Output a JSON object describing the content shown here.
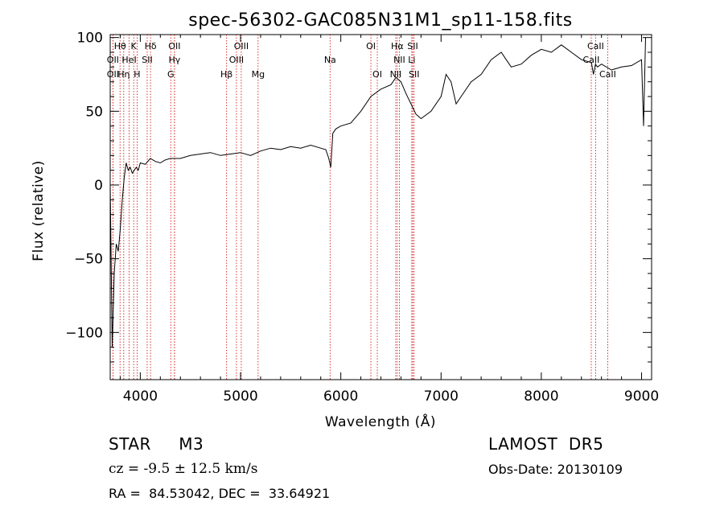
{
  "chart_data": {
    "type": "line",
    "title": "spec-56302-GAC085N31M1_sp11-158.fits",
    "xlabel": "Wavelength (Å)",
    "ylabel": "Flux (relative)",
    "xlim": [
      3700,
      9100
    ],
    "ylim": [
      -132,
      102
    ],
    "x_ticks": [
      4000,
      5000,
      6000,
      7000,
      8000,
      9000
    ],
    "y_ticks": [
      -100,
      -50,
      0,
      50,
      100
    ],
    "grid": false,
    "series": [
      {
        "x": [
          3700,
          3720,
          3740,
          3760,
          3780,
          3800,
          3820,
          3840,
          3860,
          3880,
          3900,
          3920,
          3940,
          3960,
          3980,
          4000,
          4050,
          4100,
          4150,
          4200,
          4250,
          4300,
          4400,
          4500,
          4600,
          4700,
          4800,
          4900,
          5000,
          5100,
          5200,
          5300,
          5400,
          5500,
          5600,
          5700,
          5800,
          5850,
          5880,
          5900,
          5920,
          5950,
          6000,
          6100,
          6200,
          6300,
          6400,
          6500,
          6550,
          6600,
          6650,
          6700,
          6750,
          6800,
          6900,
          7000,
          7050,
          7100,
          7150,
          7200,
          7300,
          7400,
          7500,
          7600,
          7650,
          7700,
          7800,
          7900,
          8000,
          8100,
          8200,
          8300,
          8400,
          8500,
          8520,
          8540,
          8560,
          8600,
          8700,
          8800,
          8900,
          9000,
          9020,
          9040
        ],
        "y": [
          0,
          -110,
          -60,
          -40,
          -45,
          -30,
          -10,
          5,
          15,
          10,
          12,
          8,
          10,
          12,
          10,
          15,
          14,
          18,
          16,
          15,
          17,
          18,
          18,
          20,
          21,
          22,
          20,
          21,
          22,
          20,
          23,
          25,
          24,
          26,
          25,
          27,
          25,
          24,
          18,
          12,
          35,
          38,
          40,
          42,
          50,
          60,
          65,
          68,
          73,
          70,
          62,
          55,
          48,
          45,
          50,
          60,
          75,
          70,
          55,
          60,
          70,
          75,
          85,
          90,
          85,
          80,
          82,
          88,
          92,
          90,
          95,
          90,
          85,
          83,
          75,
          82,
          80,
          82,
          78,
          80,
          81,
          85,
          40,
          100
        ]
      }
    ],
    "lines": [
      {
        "name": "Hθ",
        "x": 3798,
        "row": 1
      },
      {
        "name": "K",
        "x": 3934,
        "row": 1
      },
      {
        "name": "Hδ",
        "x": 4102,
        "row": 1
      },
      {
        "name": "OII",
        "x": 4341,
        "row": 1
      },
      {
        "name": "OIII",
        "x": 5007,
        "row": 1
      },
      {
        "name": "OI",
        "x": 6300,
        "row": 1
      },
      {
        "name": "Hα",
        "x": 6563,
        "row": 1
      },
      {
        "name": "SII",
        "x": 6717,
        "row": 1
      },
      {
        "name": "CaII",
        "x": 8542,
        "row": 1
      },
      {
        "name": "OII",
        "x": 3727,
        "row": 2
      },
      {
        "name": "HeI",
        "x": 3889,
        "row": 2
      },
      {
        "name": "SII",
        "x": 4069,
        "row": 2
      },
      {
        "name": "Hγ",
        "x": 4341,
        "row": 2
      },
      {
        "name": "OIII",
        "x": 4959,
        "row": 2
      },
      {
        "name": "Na",
        "x": 5893,
        "row": 2
      },
      {
        "name": "NII",
        "x": 6584,
        "row": 2
      },
      {
        "name": "Li",
        "x": 6708,
        "row": 2
      },
      {
        "name": "CaII",
        "x": 8498,
        "row": 2
      },
      {
        "name": "OII",
        "x": 3727,
        "row": 3
      },
      {
        "name": "Hη",
        "x": 3835,
        "row": 3
      },
      {
        "name": "H",
        "x": 3968,
        "row": 3
      },
      {
        "name": "G",
        "x": 4304,
        "row": 3
      },
      {
        "name": "Hβ",
        "x": 4861,
        "row": 3
      },
      {
        "name": "Mg",
        "x": 5175,
        "row": 3
      },
      {
        "name": "OI",
        "x": 6364,
        "row": 3
      },
      {
        "name": "NII",
        "x": 6548,
        "row": 3
      },
      {
        "name": "SII",
        "x": 6731,
        "row": 3
      },
      {
        "name": "CaII",
        "x": 8662,
        "row": 3
      }
    ],
    "line_marker_color": "#cc0000",
    "spectrum_color": "#000000"
  },
  "info": {
    "object": "STAR     M3",
    "survey": "LAMOST  DR5",
    "redshift": "cz = -9.5 ± 12.5 km/s",
    "obs_date": "Obs-Date: 20130109",
    "coords": "RA =  84.53042, DEC =  33.64921"
  }
}
